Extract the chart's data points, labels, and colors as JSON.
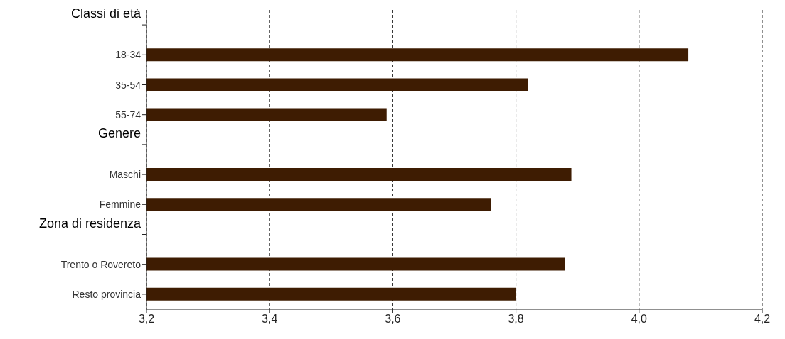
{
  "chart_data": {
    "type": "bar",
    "orientation": "horizontal",
    "categories": [
      "Classi di età",
      "18-34",
      "35-54",
      "55-74",
      "Genere",
      "Maschi",
      "Femmine",
      "Zona di residenza",
      "Trento o Rovereto",
      "Resto provincia"
    ],
    "values": [
      null,
      4.08,
      3.82,
      3.59,
      null,
      3.89,
      3.76,
      null,
      3.88,
      3.8
    ],
    "color": "#3e1c02",
    "xlim": [
      3.2,
      4.2
    ],
    "xticks": [
      {
        "value": 3.2,
        "label": "3,2"
      },
      {
        "value": 3.4,
        "label": "3,4"
      },
      {
        "value": 3.6,
        "label": "3,6"
      },
      {
        "value": 3.8,
        "label": "3,8"
      },
      {
        "value": 4.0,
        "label": "4,0"
      },
      {
        "value": 4.2,
        "label": "4,2"
      }
    ],
    "grid": "x",
    "legend": false
  }
}
